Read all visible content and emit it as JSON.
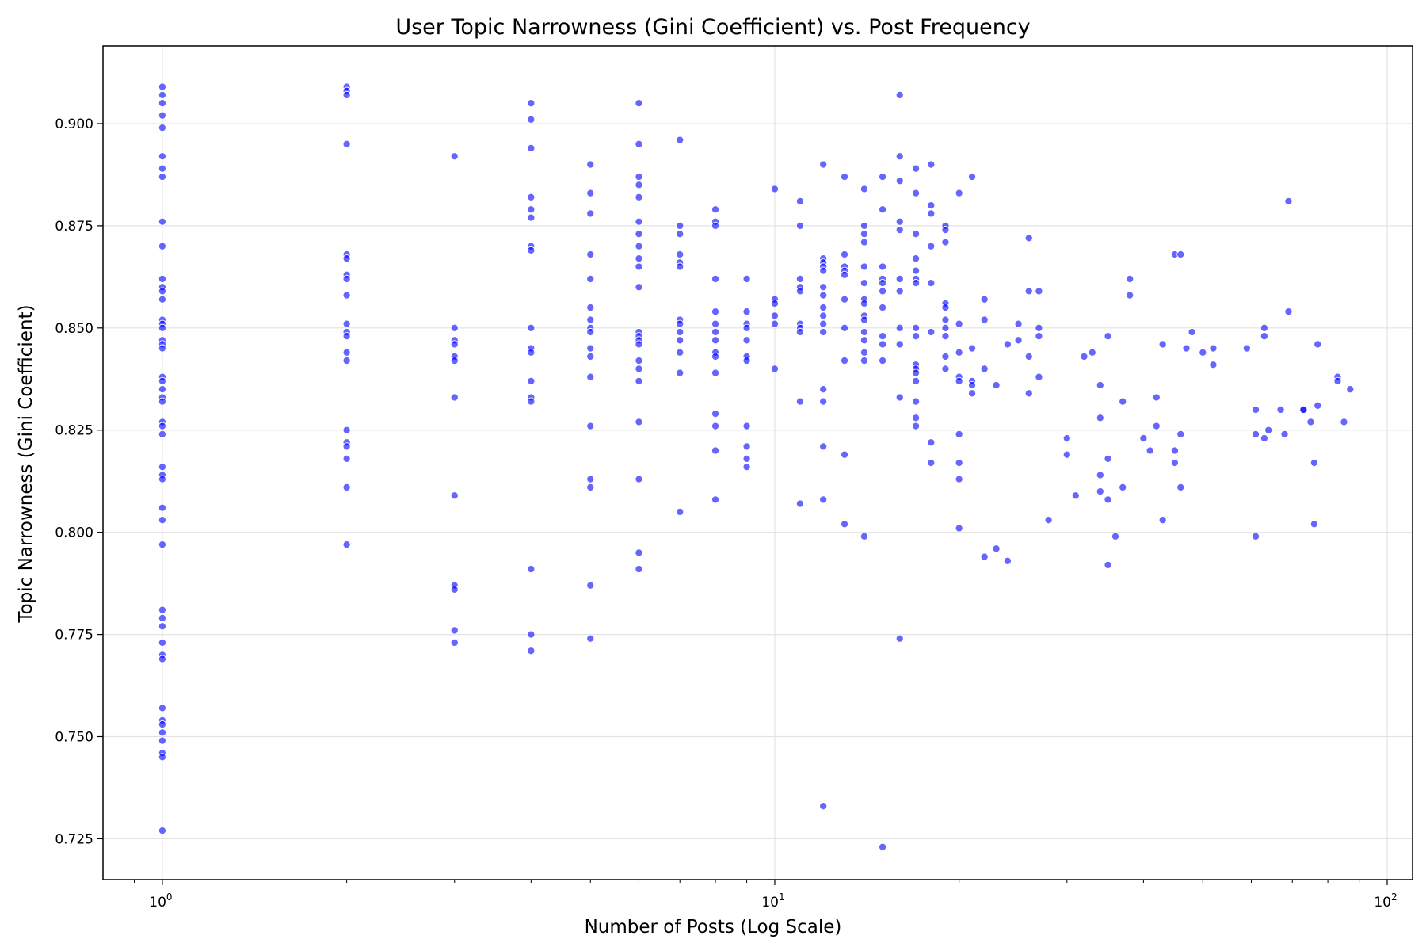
{
  "chart_data": {
    "type": "scatter",
    "title": "User Topic Narrowness (Gini Coefficient) vs. Post Frequency",
    "xlabel": "Number of Posts (Log Scale)",
    "ylabel": "Topic Narrowness (Gini Coefficient)",
    "x_scale": "log",
    "xlim": [
      0.8,
      110
    ],
    "ylim": [
      0.715,
      0.919
    ],
    "x_ticks": [
      {
        "value": 1,
        "base": "10",
        "exp": "0"
      },
      {
        "value": 10,
        "base": "10",
        "exp": "1"
      },
      {
        "value": 100,
        "base": "10",
        "exp": "2"
      }
    ],
    "y_ticks": [
      {
        "value": 0.725,
        "label": "0.725"
      },
      {
        "value": 0.75,
        "label": "0.750"
      },
      {
        "value": 0.775,
        "label": "0.775"
      },
      {
        "value": 0.8,
        "label": "0.800"
      },
      {
        "value": 0.825,
        "label": "0.825"
      },
      {
        "value": 0.85,
        "label": "0.850"
      },
      {
        "value": 0.875,
        "label": "0.875"
      },
      {
        "value": 0.9,
        "label": "0.900"
      }
    ],
    "grid": true,
    "marker_color": "#0000ff",
    "points": [
      [
        1,
        0.909
      ],
      [
        1,
        0.907
      ],
      [
        1,
        0.905
      ],
      [
        1,
        0.902
      ],
      [
        1,
        0.899
      ],
      [
        1,
        0.892
      ],
      [
        1,
        0.889
      ],
      [
        1,
        0.887
      ],
      [
        1,
        0.876
      ],
      [
        1,
        0.87
      ],
      [
        1,
        0.862
      ],
      [
        1,
        0.86
      ],
      [
        1,
        0.859
      ],
      [
        1,
        0.857
      ],
      [
        1,
        0.852
      ],
      [
        1,
        0.851
      ],
      [
        1,
        0.85
      ],
      [
        1,
        0.847
      ],
      [
        1,
        0.846
      ],
      [
        1,
        0.845
      ],
      [
        1,
        0.838
      ],
      [
        1,
        0.837
      ],
      [
        1,
        0.835
      ],
      [
        1,
        0.833
      ],
      [
        1,
        0.832
      ],
      [
        1,
        0.827
      ],
      [
        1,
        0.826
      ],
      [
        1,
        0.824
      ],
      [
        1,
        0.816
      ],
      [
        1,
        0.814
      ],
      [
        1,
        0.813
      ],
      [
        1,
        0.806
      ],
      [
        1,
        0.803
      ],
      [
        1,
        0.797
      ],
      [
        1,
        0.781
      ],
      [
        1,
        0.779
      ],
      [
        1,
        0.777
      ],
      [
        1,
        0.773
      ],
      [
        1,
        0.77
      ],
      [
        1,
        0.769
      ],
      [
        1,
        0.757
      ],
      [
        1,
        0.754
      ],
      [
        1,
        0.753
      ],
      [
        1,
        0.751
      ],
      [
        1,
        0.749
      ],
      [
        1,
        0.746
      ],
      [
        1,
        0.745
      ],
      [
        1,
        0.727
      ],
      [
        2,
        0.909
      ],
      [
        2,
        0.908
      ],
      [
        2,
        0.907
      ],
      [
        2,
        0.895
      ],
      [
        2,
        0.868
      ],
      [
        2,
        0.867
      ],
      [
        2,
        0.863
      ],
      [
        2,
        0.862
      ],
      [
        2,
        0.858
      ],
      [
        2,
        0.851
      ],
      [
        2,
        0.849
      ],
      [
        2,
        0.848
      ],
      [
        2,
        0.844
      ],
      [
        2,
        0.842
      ],
      [
        2,
        0.825
      ],
      [
        2,
        0.822
      ],
      [
        2,
        0.821
      ],
      [
        2,
        0.818
      ],
      [
        2,
        0.811
      ],
      [
        2,
        0.797
      ],
      [
        3,
        0.892
      ],
      [
        3,
        0.85
      ],
      [
        3,
        0.847
      ],
      [
        3,
        0.846
      ],
      [
        3,
        0.843
      ],
      [
        3,
        0.842
      ],
      [
        3,
        0.833
      ],
      [
        3,
        0.809
      ],
      [
        3,
        0.787
      ],
      [
        3,
        0.786
      ],
      [
        3,
        0.776
      ],
      [
        3,
        0.773
      ],
      [
        4,
        0.905
      ],
      [
        4,
        0.901
      ],
      [
        4,
        0.894
      ],
      [
        4,
        0.882
      ],
      [
        4,
        0.879
      ],
      [
        4,
        0.877
      ],
      [
        4,
        0.87
      ],
      [
        4,
        0.869
      ],
      [
        4,
        0.85
      ],
      [
        4,
        0.845
      ],
      [
        4,
        0.844
      ],
      [
        4,
        0.837
      ],
      [
        4,
        0.833
      ],
      [
        4,
        0.832
      ],
      [
        4,
        0.791
      ],
      [
        4,
        0.775
      ],
      [
        4,
        0.771
      ],
      [
        5,
        0.89
      ],
      [
        5,
        0.883
      ],
      [
        5,
        0.878
      ],
      [
        5,
        0.868
      ],
      [
        5,
        0.862
      ],
      [
        5,
        0.855
      ],
      [
        5,
        0.852
      ],
      [
        5,
        0.85
      ],
      [
        5,
        0.849
      ],
      [
        5,
        0.845
      ],
      [
        5,
        0.843
      ],
      [
        5,
        0.838
      ],
      [
        5,
        0.826
      ],
      [
        5,
        0.813
      ],
      [
        5,
        0.811
      ],
      [
        5,
        0.787
      ],
      [
        5,
        0.774
      ],
      [
        6,
        0.905
      ],
      [
        6,
        0.895
      ],
      [
        6,
        0.887
      ],
      [
        6,
        0.885
      ],
      [
        6,
        0.882
      ],
      [
        6,
        0.876
      ],
      [
        6,
        0.873
      ],
      [
        6,
        0.87
      ],
      [
        6,
        0.867
      ],
      [
        6,
        0.865
      ],
      [
        6,
        0.86
      ],
      [
        6,
        0.849
      ],
      [
        6,
        0.848
      ],
      [
        6,
        0.847
      ],
      [
        6,
        0.846
      ],
      [
        6,
        0.842
      ],
      [
        6,
        0.84
      ],
      [
        6,
        0.837
      ],
      [
        6,
        0.827
      ],
      [
        6,
        0.813
      ],
      [
        6,
        0.795
      ],
      [
        6,
        0.791
      ],
      [
        7,
        0.896
      ],
      [
        7,
        0.875
      ],
      [
        7,
        0.873
      ],
      [
        7,
        0.868
      ],
      [
        7,
        0.866
      ],
      [
        7,
        0.865
      ],
      [
        7,
        0.852
      ],
      [
        7,
        0.851
      ],
      [
        7,
        0.849
      ],
      [
        7,
        0.847
      ],
      [
        7,
        0.844
      ],
      [
        7,
        0.839
      ],
      [
        7,
        0.805
      ],
      [
        8,
        0.879
      ],
      [
        8,
        0.876
      ],
      [
        8,
        0.875
      ],
      [
        8,
        0.862
      ],
      [
        8,
        0.854
      ],
      [
        8,
        0.851
      ],
      [
        8,
        0.849
      ],
      [
        8,
        0.847
      ],
      [
        8,
        0.844
      ],
      [
        8,
        0.843
      ],
      [
        8,
        0.839
      ],
      [
        8,
        0.829
      ],
      [
        8,
        0.826
      ],
      [
        8,
        0.82
      ],
      [
        8,
        0.808
      ],
      [
        9,
        0.862
      ],
      [
        9,
        0.854
      ],
      [
        9,
        0.851
      ],
      [
        9,
        0.85
      ],
      [
        9,
        0.847
      ],
      [
        9,
        0.843
      ],
      [
        9,
        0.842
      ],
      [
        9,
        0.826
      ],
      [
        9,
        0.821
      ],
      [
        9,
        0.818
      ],
      [
        9,
        0.816
      ],
      [
        10,
        0.884
      ],
      [
        10,
        0.857
      ],
      [
        10,
        0.856
      ],
      [
        10,
        0.853
      ],
      [
        10,
        0.851
      ],
      [
        10,
        0.84
      ],
      [
        11,
        0.881
      ],
      [
        11,
        0.875
      ],
      [
        11,
        0.862
      ],
      [
        11,
        0.86
      ],
      [
        11,
        0.859
      ],
      [
        11,
        0.851
      ],
      [
        11,
        0.85
      ],
      [
        11,
        0.849
      ],
      [
        11,
        0.832
      ],
      [
        11,
        0.807
      ],
      [
        12,
        0.89
      ],
      [
        12,
        0.867
      ],
      [
        12,
        0.866
      ],
      [
        12,
        0.865
      ],
      [
        12,
        0.864
      ],
      [
        12,
        0.86
      ],
      [
        12,
        0.858
      ],
      [
        12,
        0.855
      ],
      [
        12,
        0.853
      ],
      [
        12,
        0.851
      ],
      [
        12,
        0.849
      ],
      [
        12,
        0.835
      ],
      [
        12,
        0.832
      ],
      [
        12,
        0.821
      ],
      [
        12,
        0.808
      ],
      [
        12,
        0.733
      ],
      [
        13,
        0.887
      ],
      [
        13,
        0.868
      ],
      [
        13,
        0.865
      ],
      [
        13,
        0.864
      ],
      [
        13,
        0.863
      ],
      [
        13,
        0.857
      ],
      [
        13,
        0.85
      ],
      [
        13,
        0.842
      ],
      [
        13,
        0.819
      ],
      [
        13,
        0.802
      ],
      [
        14,
        0.884
      ],
      [
        14,
        0.875
      ],
      [
        14,
        0.873
      ],
      [
        14,
        0.871
      ],
      [
        14,
        0.865
      ],
      [
        14,
        0.861
      ],
      [
        14,
        0.857
      ],
      [
        14,
        0.856
      ],
      [
        14,
        0.853
      ],
      [
        14,
        0.852
      ],
      [
        14,
        0.849
      ],
      [
        14,
        0.847
      ],
      [
        14,
        0.844
      ],
      [
        14,
        0.842
      ],
      [
        14,
        0.799
      ],
      [
        15,
        0.887
      ],
      [
        15,
        0.879
      ],
      [
        15,
        0.865
      ],
      [
        15,
        0.862
      ],
      [
        15,
        0.861
      ],
      [
        15,
        0.859
      ],
      [
        15,
        0.855
      ],
      [
        15,
        0.848
      ],
      [
        15,
        0.846
      ],
      [
        15,
        0.842
      ],
      [
        15,
        0.723
      ],
      [
        16,
        0.907
      ],
      [
        16,
        0.892
      ],
      [
        16,
        0.886
      ],
      [
        16,
        0.876
      ],
      [
        16,
        0.874
      ],
      [
        16,
        0.862
      ],
      [
        16,
        0.859
      ],
      [
        16,
        0.85
      ],
      [
        16,
        0.846
      ],
      [
        16,
        0.833
      ],
      [
        16,
        0.774
      ],
      [
        17,
        0.889
      ],
      [
        17,
        0.883
      ],
      [
        17,
        0.873
      ],
      [
        17,
        0.867
      ],
      [
        17,
        0.864
      ],
      [
        17,
        0.862
      ],
      [
        17,
        0.861
      ],
      [
        17,
        0.85
      ],
      [
        17,
        0.848
      ],
      [
        17,
        0.841
      ],
      [
        17,
        0.84
      ],
      [
        17,
        0.839
      ],
      [
        17,
        0.837
      ],
      [
        17,
        0.832
      ],
      [
        17,
        0.828
      ],
      [
        17,
        0.826
      ],
      [
        18,
        0.89
      ],
      [
        18,
        0.88
      ],
      [
        18,
        0.878
      ],
      [
        18,
        0.87
      ],
      [
        18,
        0.861
      ],
      [
        18,
        0.849
      ],
      [
        18,
        0.822
      ],
      [
        18,
        0.817
      ],
      [
        19,
        0.875
      ],
      [
        19,
        0.874
      ],
      [
        19,
        0.871
      ],
      [
        19,
        0.856
      ],
      [
        19,
        0.855
      ],
      [
        19,
        0.852
      ],
      [
        19,
        0.85
      ],
      [
        19,
        0.848
      ],
      [
        19,
        0.843
      ],
      [
        19,
        0.84
      ],
      [
        20,
        0.883
      ],
      [
        20,
        0.851
      ],
      [
        20,
        0.844
      ],
      [
        20,
        0.838
      ],
      [
        20,
        0.837
      ],
      [
        20,
        0.824
      ],
      [
        20,
        0.817
      ],
      [
        20,
        0.813
      ],
      [
        20,
        0.801
      ],
      [
        21,
        0.887
      ],
      [
        21,
        0.845
      ],
      [
        21,
        0.837
      ],
      [
        21,
        0.836
      ],
      [
        21,
        0.834
      ],
      [
        22,
        0.857
      ],
      [
        22,
        0.852
      ],
      [
        22,
        0.84
      ],
      [
        22,
        0.794
      ],
      [
        23,
        0.836
      ],
      [
        23,
        0.796
      ],
      [
        24,
        0.846
      ],
      [
        24,
        0.793
      ],
      [
        25,
        0.851
      ],
      [
        25,
        0.847
      ],
      [
        26,
        0.872
      ],
      [
        26,
        0.859
      ],
      [
        26,
        0.843
      ],
      [
        26,
        0.834
      ],
      [
        27,
        0.859
      ],
      [
        27,
        0.85
      ],
      [
        27,
        0.848
      ],
      [
        27,
        0.838
      ],
      [
        28,
        0.803
      ],
      [
        30,
        0.823
      ],
      [
        30,
        0.819
      ],
      [
        31,
        0.809
      ],
      [
        32,
        0.843
      ],
      [
        33,
        0.844
      ],
      [
        34,
        0.836
      ],
      [
        34,
        0.828
      ],
      [
        34,
        0.814
      ],
      [
        34,
        0.81
      ],
      [
        35,
        0.848
      ],
      [
        35,
        0.818
      ],
      [
        35,
        0.808
      ],
      [
        35,
        0.792
      ],
      [
        36,
        0.799
      ],
      [
        37,
        0.832
      ],
      [
        37,
        0.811
      ],
      [
        38,
        0.862
      ],
      [
        38,
        0.858
      ],
      [
        40,
        0.823
      ],
      [
        41,
        0.82
      ],
      [
        42,
        0.833
      ],
      [
        42,
        0.826
      ],
      [
        43,
        0.846
      ],
      [
        43,
        0.803
      ],
      [
        45,
        0.868
      ],
      [
        45,
        0.82
      ],
      [
        45,
        0.817
      ],
      [
        46,
        0.868
      ],
      [
        46,
        0.824
      ],
      [
        46,
        0.811
      ],
      [
        47,
        0.845
      ],
      [
        48,
        0.849
      ],
      [
        50,
        0.844
      ],
      [
        52,
        0.845
      ],
      [
        52,
        0.841
      ],
      [
        59,
        0.845
      ],
      [
        61,
        0.83
      ],
      [
        61,
        0.824
      ],
      [
        61,
        0.799
      ],
      [
        63,
        0.85
      ],
      [
        63,
        0.848
      ],
      [
        63,
        0.823
      ],
      [
        64,
        0.825
      ],
      [
        67,
        0.83
      ],
      [
        68,
        0.824
      ],
      [
        69,
        0.881
      ],
      [
        69,
        0.854
      ],
      [
        73,
        0.83
      ],
      [
        73,
        0.83
      ],
      [
        75,
        0.827
      ],
      [
        76,
        0.817
      ],
      [
        76,
        0.802
      ],
      [
        77,
        0.846
      ],
      [
        77,
        0.831
      ],
      [
        83,
        0.838
      ],
      [
        83,
        0.837
      ],
      [
        85,
        0.827
      ],
      [
        87,
        0.835
      ]
    ]
  }
}
